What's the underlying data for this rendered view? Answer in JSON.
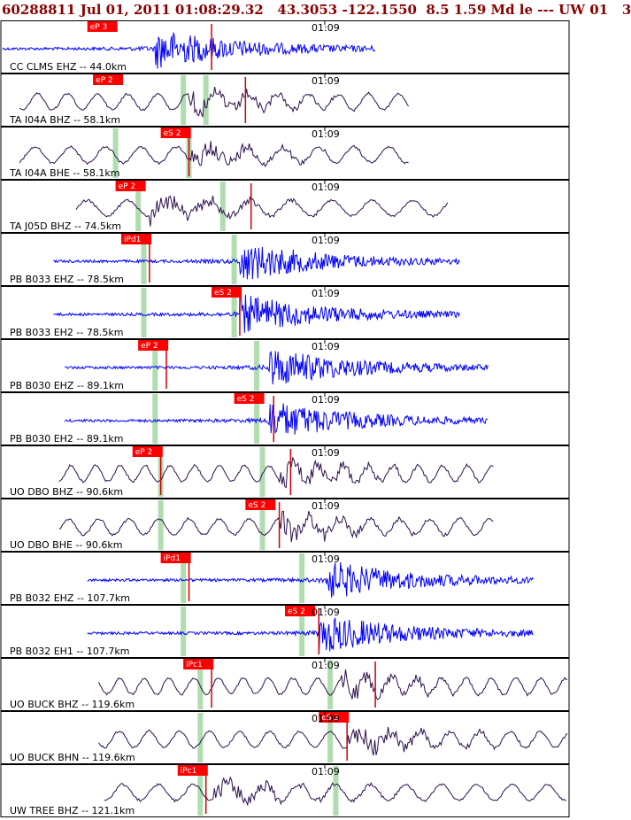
{
  "header": {
    "text": "60288811 Jul 01, 2011 01:08:29.32   43.3053 -122.1550  8.5 1.59 Md le --- UW 01   3"
  },
  "colors": {
    "header_text": "#8b0000",
    "broadband_trace": "#2d0f4d",
    "short_period_trace": "#0000ff",
    "pick_box": "#ff0000",
    "pick_line": "#cc0000",
    "theoretical_arrival": "#b0ddb0",
    "panel_border": "#000000"
  },
  "chart_data": {
    "type": "line",
    "title": "60288811 Jul 01, 2011 01:08:29.32   43.3053 -122.1550  8.5 1.59 Md le --- UW 01   3",
    "time_tick_label": "01:09",
    "traces": [
      {
        "label": "CC CLMS EHZ -- 44.0km",
        "kind": "short",
        "pick": "eP 3",
        "pick_pos": 0.15,
        "data_start": 0.0,
        "data_end": 0.66,
        "green": [],
        "red": [
          0.37
        ],
        "burst": 0.27
      },
      {
        "label": "TA I04A BHZ -- 58.1km",
        "kind": "broad",
        "pick": "eP 2",
        "pick_pos": 0.16,
        "data_start": 0.03,
        "data_end": 0.72,
        "green": [
          0.32,
          0.36
        ],
        "red": [
          0.43
        ],
        "burst": 0.33
      },
      {
        "label": "TA I04A BHE -- 58.1km",
        "kind": "broad",
        "pick": "eS 2",
        "pick_pos": 0.28,
        "data_start": 0.03,
        "data_end": 0.72,
        "green": [
          0.2,
          0.33
        ],
        "red": [
          0.33
        ],
        "burst": 0.33
      },
      {
        "label": "TA J05D BHZ -- 74.5km",
        "kind": "broad",
        "pick": "eP 2",
        "pick_pos": 0.2,
        "data_start": 0.13,
        "data_end": 0.79,
        "green": [
          0.24,
          0.39
        ],
        "red": [
          0.44
        ],
        "burst": 0.26
      },
      {
        "label": "PB B033 EHZ -- 78.5km",
        "kind": "short",
        "pick": "iPd1",
        "pick_pos": 0.21,
        "data_start": 0.09,
        "data_end": 0.81,
        "green": [
          0.25,
          0.41
        ],
        "red": [
          0.26
        ],
        "burst": 0.42
      },
      {
        "label": "PB B033 EH2 -- 78.5km",
        "kind": "short",
        "pick": "eS 2",
        "pick_pos": 0.37,
        "data_start": 0.09,
        "data_end": 0.81,
        "green": [
          0.25,
          0.41
        ],
        "red": [
          0.42
        ],
        "burst": 0.42
      },
      {
        "label": "PB B030 EHZ -- 89.1km",
        "kind": "short",
        "pick": "eP 2",
        "pick_pos": 0.24,
        "data_start": 0.11,
        "data_end": 0.86,
        "green": [
          0.27,
          0.45
        ],
        "red": [
          0.29
        ],
        "burst": 0.47
      },
      {
        "label": "PB B030 EH2 -- 89.1km",
        "kind": "short",
        "pick": "eS 2",
        "pick_pos": 0.41,
        "data_start": 0.11,
        "data_end": 0.86,
        "green": [
          0.27,
          0.45
        ],
        "red": [
          0.48
        ],
        "burst": 0.47
      },
      {
        "label": "UO DBO BHZ -- 90.6km",
        "kind": "broad",
        "pick": "eP 2",
        "pick_pos": 0.23,
        "data_start": 0.1,
        "data_end": 0.87,
        "green": [
          0.28,
          0.46
        ],
        "red": [
          0.28,
          0.51
        ],
        "burst": 0.49
      },
      {
        "label": "UO DBO BHE -- 90.6km",
        "kind": "broad",
        "pick": "eS 2",
        "pick_pos": 0.43,
        "data_start": 0.1,
        "data_end": 0.87,
        "green": [
          0.28,
          0.46
        ],
        "red": [
          0.49
        ],
        "burst": 0.49
      },
      {
        "label": "PB B032 EHZ -- 107.7km",
        "kind": "short",
        "pick": "iPd1",
        "pick_pos": 0.28,
        "data_start": 0.15,
        "data_end": 0.94,
        "green": [
          0.32,
          0.53
        ],
        "red": [
          0.33
        ],
        "burst": 0.57
      },
      {
        "label": "PB B032 EH1 -- 107.7km",
        "kind": "short",
        "pick": "eS 2",
        "pick_pos": 0.5,
        "data_start": 0.15,
        "data_end": 0.94,
        "green": [
          0.32,
          0.53
        ],
        "red": [
          0.56
        ],
        "burst": 0.56
      },
      {
        "label": "UO BUCK BHZ -- 119.6km",
        "kind": "broad",
        "pick": "iPc1",
        "pick_pos": 0.32,
        "data_start": 0.17,
        "data_end": 1.0,
        "green": [
          0.35,
          0.58
        ],
        "red": [
          0.37,
          0.66
        ],
        "burst": 0.6
      },
      {
        "label": "UO BUCK BHN -- 119.6km",
        "kind": "broad",
        "pick": "eS 2",
        "pick_pos": 0.56,
        "data_start": 0.17,
        "data_end": 1.0,
        "green": [
          0.35,
          0.58
        ],
        "red": [
          0.61
        ],
        "burst": 0.61
      },
      {
        "label": "UW TREE BHZ -- 121.1km",
        "kind": "broad",
        "pick": "iPc1",
        "pick_pos": 0.31,
        "data_start": 0.18,
        "data_end": 1.0,
        "green": [
          0.35,
          0.59
        ],
        "red": [
          0.36
        ],
        "burst": 0.37
      }
    ]
  }
}
